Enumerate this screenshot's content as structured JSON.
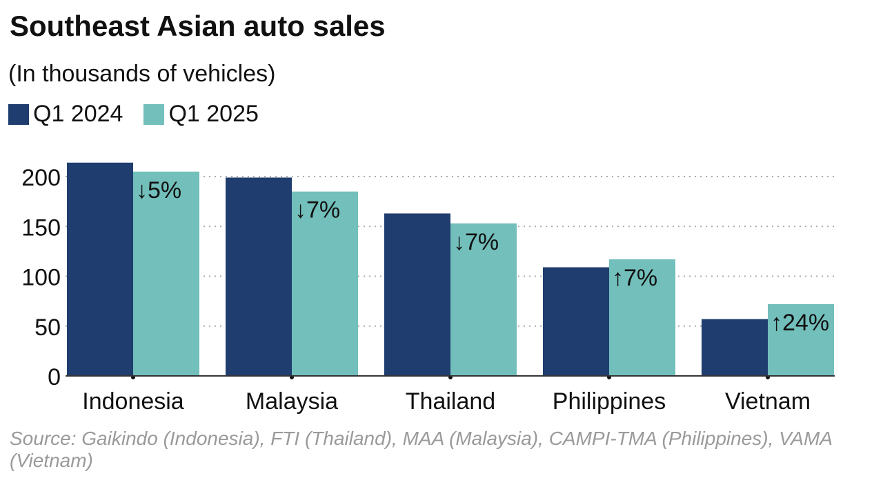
{
  "chart_data": {
    "type": "bar",
    "title": "Southeast Asian auto sales",
    "subtitle": "(In thousands of vehicles)",
    "categories": [
      "Indonesia",
      "Malaysia",
      "Thailand",
      "Philippines",
      "Vietnam"
    ],
    "series": [
      {
        "name": "Q1 2024",
        "color": "#1f3d6e",
        "values": [
          214,
          199,
          163,
          109,
          57
        ]
      },
      {
        "name": "Q1 2025",
        "color": "#72bfbb",
        "values": [
          205,
          185,
          153,
          117,
          72
        ]
      }
    ],
    "change_labels": [
      "↓5%",
      "↓7%",
      "↓7%",
      "↑7%",
      "↑24%"
    ],
    "yticks": [
      "0",
      "50",
      "100",
      "150",
      "200"
    ],
    "ytick_values": [
      0,
      50,
      100,
      150,
      200
    ],
    "ylim": [
      0,
      215
    ],
    "grid": true,
    "legend": "top-left",
    "xlabel": "",
    "ylabel": ""
  },
  "source": "Source: Gaikindo (Indonesia), FTI (Thailand), MAA (Malaysia), CAMPI-TMA (Philippines), VAMA (Vietnam)"
}
